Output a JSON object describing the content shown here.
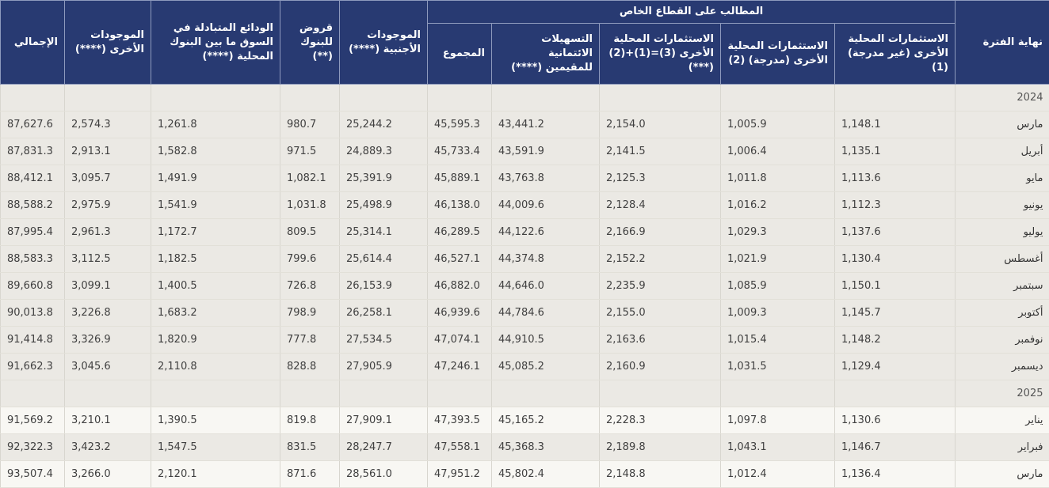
{
  "header": {
    "period": "نهاية الفترة",
    "group": "المطالب على القطاع الخاص",
    "sub": [
      "الاستثمارات المحلية الأخرى (غير مدرجة) (1)",
      "الاستثمارات المحلية الأخرى (مدرجة) (2)",
      "الاستثمارات المحلية الأخرى (3)=(1)+(2) (***)",
      "التسهيلات الائتمانية للمقيمين (****)",
      "المجموع"
    ],
    "foreign": "الموجودات الأجنبية (****)",
    "loans": "قروض للبنوك (**)",
    "deposits": "الودائع المتبادلة في السوق ما بين البنوك المحلية (****)",
    "other": "الموجودات الأخرى (****)",
    "total": "الإجمالي"
  },
  "rows": [
    {
      "year": "2024"
    },
    {
      "label": "مارس",
      "v": [
        "1,148.1",
        "1,005.9",
        "2,154.0",
        "43,441.2",
        "45,595.3",
        "25,244.2",
        "980.7",
        "1,261.8",
        "2,574.3",
        "87,627.6"
      ]
    },
    {
      "label": "أبريل",
      "v": [
        "1,135.1",
        "1,006.4",
        "2,141.5",
        "43,591.9",
        "45,733.4",
        "24,889.3",
        "971.5",
        "1,582.8",
        "2,913.1",
        "87,831.3"
      ]
    },
    {
      "label": "مايو",
      "v": [
        "1,113.6",
        "1,011.8",
        "2,125.3",
        "43,763.8",
        "45,889.1",
        "25,391.9",
        "1,082.1",
        "1,491.9",
        "3,095.7",
        "88,412.1"
      ]
    },
    {
      "label": "يونيو",
      "v": [
        "1,112.3",
        "1,016.2",
        "2,128.4",
        "44,009.6",
        "46,138.0",
        "25,498.9",
        "1,031.8",
        "1,541.9",
        "2,975.9",
        "88,588.2"
      ]
    },
    {
      "label": "يوليو",
      "v": [
        "1,137.6",
        "1,029.3",
        "2,166.9",
        "44,122.6",
        "46,289.5",
        "25,314.1",
        "809.5",
        "1,172.7",
        "2,961.3",
        "87,995.4"
      ]
    },
    {
      "label": "أغسطس",
      "v": [
        "1,130.4",
        "1,021.9",
        "2,152.2",
        "44,374.8",
        "46,527.1",
        "25,614.4",
        "799.6",
        "1,182.5",
        "3,112.5",
        "88,583.3"
      ]
    },
    {
      "label": "سبتمبر",
      "v": [
        "1,150.1",
        "1,085.9",
        "2,235.9",
        "44,646.0",
        "46,882.0",
        "26,153.9",
        "726.8",
        "1,400.5",
        "3,099.1",
        "89,660.8"
      ]
    },
    {
      "label": "أكتوبر",
      "v": [
        "1,145.7",
        "1,009.3",
        "2,155.0",
        "44,784.6",
        "46,939.6",
        "26,258.1",
        "798.9",
        "1,683.2",
        "3,226.8",
        "90,013.8"
      ]
    },
    {
      "label": "نوفمبر",
      "v": [
        "1,148.2",
        "1,015.4",
        "2,163.6",
        "44,910.5",
        "47,074.1",
        "27,534.5",
        "777.8",
        "1,820.9",
        "3,326.9",
        "91,414.8"
      ]
    },
    {
      "label": "ديسمبر",
      "v": [
        "1,129.4",
        "1,031.5",
        "2,160.9",
        "45,085.2",
        "47,246.1",
        "27,905.9",
        "828.8",
        "2,110.8",
        "3,045.6",
        "91,662.3"
      ]
    },
    {
      "year": "2025"
    },
    {
      "label": "يناير",
      "v": [
        "1,130.6",
        "1,097.8",
        "2,228.3",
        "45,165.2",
        "47,393.5",
        "27,909.1",
        "819.8",
        "1,390.5",
        "3,210.1",
        "91,569.2"
      ]
    },
    {
      "label": "فبراير",
      "v": [
        "1,146.7",
        "1,043.1",
        "2,189.8",
        "45,368.3",
        "47,558.1",
        "28,247.7",
        "831.5",
        "1,547.5",
        "3,423.2",
        "92,322.3"
      ]
    },
    {
      "label": "مارس",
      "v": [
        "1,136.4",
        "1,012.4",
        "2,148.8",
        "45,802.4",
        "47,951.2",
        "28,561.0",
        "871.6",
        "2,120.1",
        "3,266.0",
        "93,507.4"
      ]
    }
  ]
}
